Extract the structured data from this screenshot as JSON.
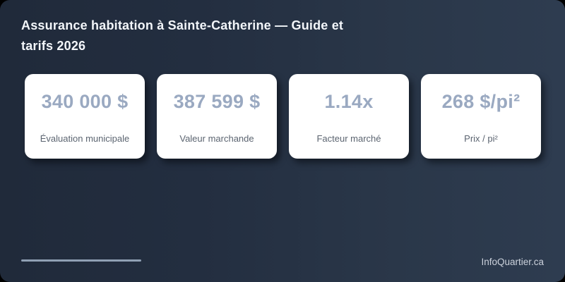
{
  "page": {
    "title": "Assurance habitation à Sainte-Catherine — Guide et tarifs 2026",
    "brand": "InfoQuartier.ca"
  },
  "colors": {
    "background_left": "#202a3a",
    "background_right": "#2e3c50",
    "card_background": "#ffffff",
    "value_text": "#9aa9c1",
    "label_text": "#5b6470",
    "title_text": "#f3f6fa",
    "accent_line": "#90a0b4",
    "brand_text": "#ccd2dc"
  },
  "cards": [
    {
      "value": "340 000 $",
      "label": "Évaluation municipale"
    },
    {
      "value": "387 599 $",
      "label": "Valeur marchande"
    },
    {
      "value": "1.14x",
      "label": "Facteur marché"
    },
    {
      "value": "268 $/pi²",
      "label": "Prix / pi²"
    }
  ]
}
